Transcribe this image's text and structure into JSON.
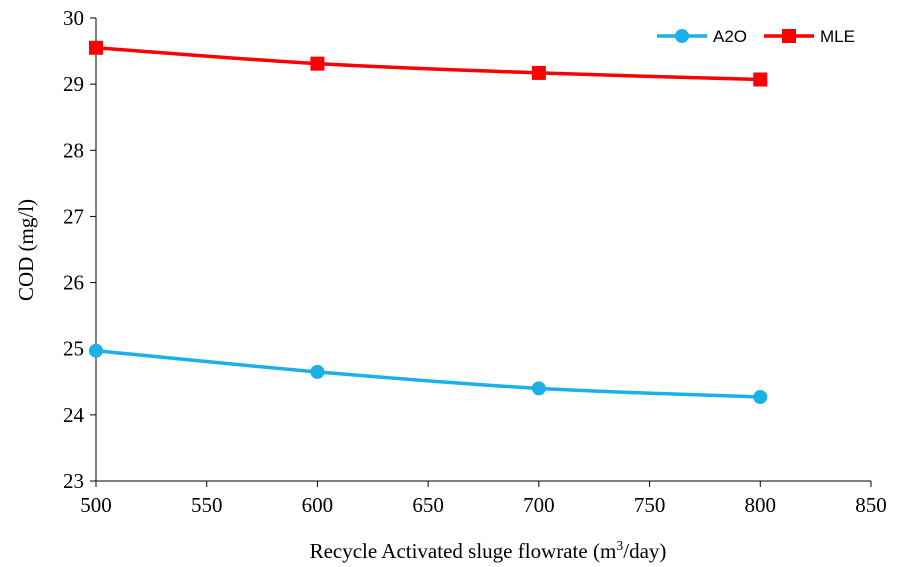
{
  "chart_data": {
    "type": "line",
    "title": "",
    "xlabel_main": "Recycle Activated sluge flowrate (m",
    "xlabel_sup": "3",
    "xlabel_tail": "/day)",
    "ylabel": "COD (mg/l)",
    "xlim": [
      500,
      850
    ],
    "ylim": [
      23,
      30
    ],
    "xticks": [
      500,
      550,
      600,
      650,
      700,
      750,
      800,
      850
    ],
    "yticks": [
      23,
      24,
      25,
      26,
      27,
      28,
      29,
      30
    ],
    "legend_position": "top-right",
    "grid": false,
    "series": [
      {
        "name": "A2O",
        "color": "#1BB0E8",
        "marker": "circle",
        "x": [
          500,
          600,
          700,
          800
        ],
        "y": [
          24.97,
          24.65,
          24.4,
          24.27
        ]
      },
      {
        "name": "MLE",
        "color": "#FF0000",
        "marker": "square",
        "x": [
          500,
          600,
          700,
          800
        ],
        "y": [
          29.55,
          29.31,
          29.17,
          29.07
        ]
      }
    ]
  }
}
